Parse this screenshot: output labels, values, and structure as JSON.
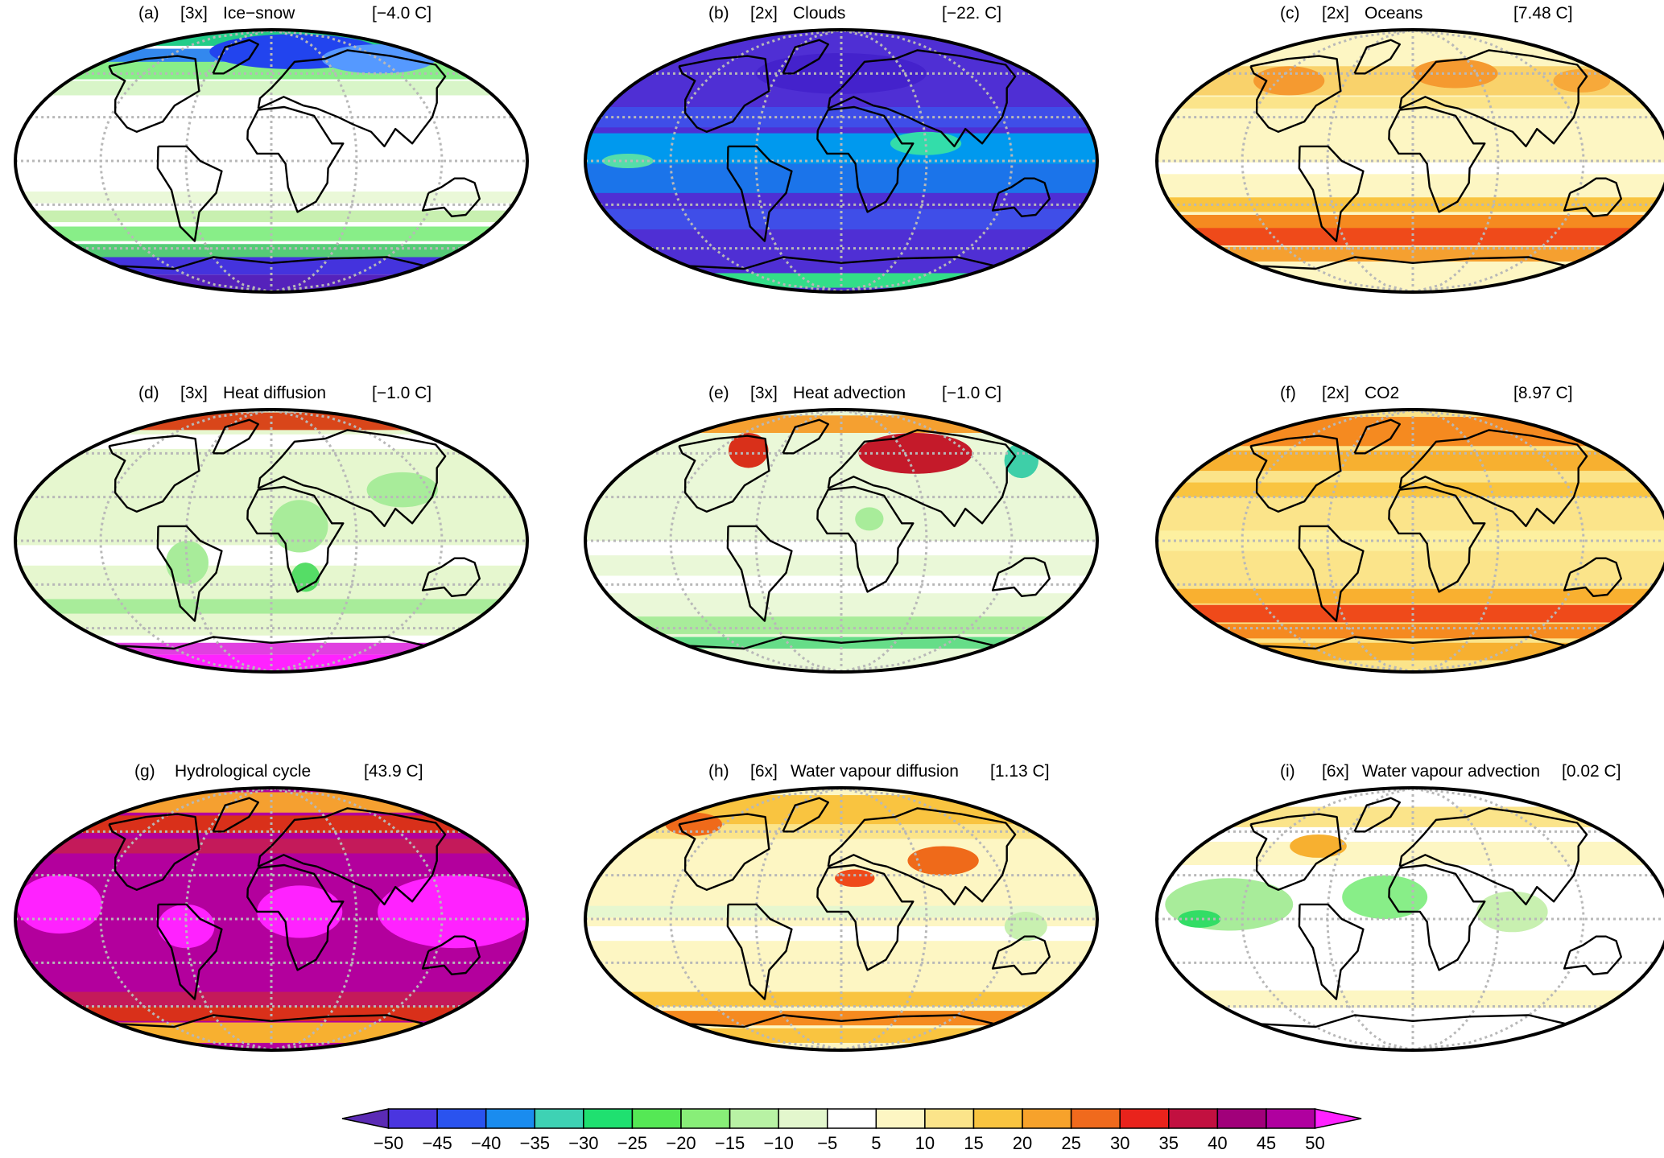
{
  "figure": {
    "panels": [
      {
        "letter": "(a)",
        "multiplier": "[3x]",
        "name": "Ice−snow",
        "mean": "[−4.0 C]",
        "base": "#ffffff",
        "bands": [
          {
            "lat": 85,
            "h": 12,
            "color": "#22cc88"
          },
          {
            "lat": 72,
            "h": 10,
            "color": "#3388ee"
          },
          {
            "lat": 62,
            "h": 12,
            "color": "#88ee88"
          },
          {
            "lat": 50,
            "h": 10,
            "color": "#d8f5c8"
          },
          {
            "lat": -25,
            "h": 8,
            "color": "#eaf8d8"
          },
          {
            "lat": -38,
            "h": 8,
            "color": "#c8f0b0"
          },
          {
            "lat": -50,
            "h": 10,
            "color": "#88ee88"
          },
          {
            "lat": -62,
            "h": 10,
            "color": "#55cc77"
          },
          {
            "lat": -72,
            "h": 12,
            "color": "#4433dd"
          },
          {
            "lat": -84,
            "h": 12,
            "color": "#5522bb"
          }
        ],
        "blobs": [
          {
            "lon": 30,
            "lat": 75,
            "rx": 60,
            "ry": 12,
            "color": "#2244ee"
          },
          {
            "lon": 120,
            "lat": 70,
            "rx": 40,
            "ry": 10,
            "color": "#5599ff"
          }
        ]
      },
      {
        "letter": "(b)",
        "multiplier": "[2x]",
        "name": "Clouds",
        "mean": "[−22. C]",
        "base": "#4f2fd4",
        "bands": [
          {
            "lat": 8,
            "h": 22,
            "color": "#0099ee"
          },
          {
            "lat": -12,
            "h": 20,
            "color": "#1b74ea"
          },
          {
            "lat": 30,
            "h": 14,
            "color": "#3f4ee8"
          },
          {
            "lat": -40,
            "h": 14,
            "color": "#3f4ee8"
          },
          {
            "lat": -82,
            "h": 10,
            "color": "#33dd88"
          }
        ],
        "blobs": [
          {
            "lon": -150,
            "lat": 0,
            "rx": 18,
            "ry": 5,
            "color": "#55ddaa"
          },
          {
            "lon": 60,
            "lat": 12,
            "rx": 25,
            "ry": 8,
            "color": "#33ddaa"
          },
          {
            "lon": 0,
            "lat": 60,
            "rx": 60,
            "ry": 14,
            "color": "#4422cc"
          }
        ]
      },
      {
        "letter": "(c)",
        "multiplier": "[2x]",
        "name": "Oceans",
        "mean": "[7.48 C]",
        "base": "#fdf6c3",
        "bands": [
          {
            "lat": 55,
            "h": 20,
            "color": "#f9d26b"
          },
          {
            "lat": 40,
            "h": 8,
            "color": "#fbe48a"
          },
          {
            "lat": -5,
            "h": 8,
            "color": "#ffffff"
          },
          {
            "lat": -30,
            "h": 10,
            "color": "#f9c440"
          },
          {
            "lat": -42,
            "h": 10,
            "color": "#f58a20"
          },
          {
            "lat": -52,
            "h": 12,
            "color": "#ef4a1a"
          },
          {
            "lat": -64,
            "h": 10,
            "color": "#f5a030"
          },
          {
            "lat": -76,
            "h": 10,
            "color": "#fdf6c3"
          }
        ],
        "blobs": [
          {
            "lon": -110,
            "lat": 55,
            "rx": 25,
            "ry": 10,
            "color": "#f59a30"
          },
          {
            "lon": 40,
            "lat": 60,
            "rx": 30,
            "ry": 10,
            "color": "#f59a30"
          },
          {
            "lon": 150,
            "lat": 55,
            "rx": 20,
            "ry": 8,
            "color": "#f7a93a"
          }
        ]
      },
      {
        "letter": "(d)",
        "multiplier": "[3x]",
        "name": "Heat diffusion",
        "mean": "[−1.0 C]",
        "base": "#e6f7cf",
        "bands": [
          {
            "lat": 82,
            "h": 12,
            "color": "#d9461a"
          },
          {
            "lat": 68,
            "h": 10,
            "color": "#ffffff"
          },
          {
            "lat": -10,
            "h": 14,
            "color": "#ffffff"
          },
          {
            "lat": -45,
            "h": 10,
            "color": "#a8ec9a"
          },
          {
            "lat": -68,
            "h": 6,
            "color": "#ffffff"
          },
          {
            "lat": -74,
            "h": 8,
            "color": "#e040e0"
          },
          {
            "lat": -84,
            "h": 12,
            "color": "#ff22ff"
          }
        ],
        "blobs": [
          {
            "lon": 20,
            "lat": 10,
            "rx": 20,
            "ry": 18,
            "color": "#a8ec9a"
          },
          {
            "lon": 100,
            "lat": 35,
            "rx": 25,
            "ry": 12,
            "color": "#a8ec9a"
          },
          {
            "lon": -60,
            "lat": -15,
            "rx": 15,
            "ry": 15,
            "color": "#a8ec9a"
          },
          {
            "lon": 25,
            "lat": -25,
            "rx": 10,
            "ry": 10,
            "color": "#55dd66"
          }
        ]
      },
      {
        "letter": "(e)",
        "multiplier": "[3x]",
        "name": "Heat advection",
        "mean": "[−1.0 C]",
        "base": "#eaf8d8",
        "bands": [
          {
            "lat": 80,
            "h": 12,
            "color": "#f5a030"
          },
          {
            "lat": -5,
            "h": 10,
            "color": "#ffffff"
          },
          {
            "lat": -30,
            "h": 12,
            "color": "#ffffff"
          },
          {
            "lat": -58,
            "h": 12,
            "color": "#a8ec9a"
          },
          {
            "lat": -70,
            "h": 8,
            "color": "#66dd88"
          }
        ],
        "blobs": [
          {
            "lon": 70,
            "lat": 60,
            "rx": 40,
            "ry": 14,
            "color": "#c41a2a"
          },
          {
            "lon": -90,
            "lat": 62,
            "rx": 14,
            "ry": 12,
            "color": "#d9301a"
          },
          {
            "lon": 160,
            "lat": 55,
            "rx": 12,
            "ry": 12,
            "color": "#3ecfa8"
          },
          {
            "lon": 20,
            "lat": 15,
            "rx": 10,
            "ry": 8,
            "color": "#a8ec9a"
          }
        ]
      },
      {
        "letter": "(f)",
        "multiplier": "[2x]",
        "name": "CO2",
        "mean": "[8.97 C]",
        "base": "#fbe48a",
        "bands": [
          {
            "lat": 75,
            "h": 20,
            "color": "#f58a20"
          },
          {
            "lat": 55,
            "h": 14,
            "color": "#f7b030"
          },
          {
            "lat": 35,
            "h": 10,
            "color": "#f9c440"
          },
          {
            "lat": 0,
            "h": 14,
            "color": "#fdf0a0"
          },
          {
            "lat": -38,
            "h": 10,
            "color": "#f9b030"
          },
          {
            "lat": -50,
            "h": 12,
            "color": "#ef4a1a"
          },
          {
            "lat": -62,
            "h": 10,
            "color": "#f58a20"
          },
          {
            "lat": -76,
            "h": 12,
            "color": "#f7b030"
          }
        ],
        "blobs": []
      },
      {
        "letter": "(g)",
        "multiplier": "",
        "name": "Hydrological cycle",
        "mean": "[43.9 C]",
        "base": "#b3009d",
        "bands": [
          {
            "lat": 80,
            "h": 14,
            "color": "#f5a030"
          },
          {
            "lat": 65,
            "h": 12,
            "color": "#d9301a"
          },
          {
            "lat": 50,
            "h": 10,
            "color": "#c41a5a"
          },
          {
            "lat": -55,
            "h": 10,
            "color": "#c41a5a"
          },
          {
            "lat": -65,
            "h": 10,
            "color": "#d9301a"
          },
          {
            "lat": -78,
            "h": 14,
            "color": "#f7b030"
          }
        ],
        "blobs": [
          {
            "lon": -150,
            "lat": 10,
            "rx": 30,
            "ry": 20,
            "color": "#ff22ff"
          },
          {
            "lon": 130,
            "lat": 5,
            "rx": 55,
            "ry": 25,
            "color": "#ff22ff"
          },
          {
            "lon": 20,
            "lat": 5,
            "rx": 30,
            "ry": 18,
            "color": "#ff22ff"
          },
          {
            "lon": -60,
            "lat": -5,
            "rx": 20,
            "ry": 15,
            "color": "#ff22ff"
          }
        ]
      },
      {
        "letter": "(h)",
        "multiplier": "[6x]",
        "name": "Water vapour diffusion",
        "mean": "[1.13 C]",
        "base": "#fdf6c3",
        "bands": [
          {
            "lat": 75,
            "h": 20,
            "color": "#f9c440"
          },
          {
            "lat": 60,
            "h": 10,
            "color": "#fbe48a"
          },
          {
            "lat": 5,
            "h": 8,
            "color": "#e6f7cf"
          },
          {
            "lat": -10,
            "h": 10,
            "color": "#ffffff"
          },
          {
            "lat": -55,
            "h": 10,
            "color": "#f9c440"
          },
          {
            "lat": -68,
            "h": 10,
            "color": "#f58a20"
          },
          {
            "lat": -80,
            "h": 10,
            "color": "#f9c440"
          }
        ],
        "blobs": [
          {
            "lon": 80,
            "lat": 40,
            "rx": 25,
            "ry": 10,
            "color": "#ef6a1a"
          },
          {
            "lon": 10,
            "lat": 28,
            "rx": 14,
            "ry": 6,
            "color": "#ef4a1a"
          },
          {
            "lon": -150,
            "lat": 65,
            "rx": 20,
            "ry": 8,
            "color": "#ef6a1a"
          },
          {
            "lon": 130,
            "lat": -5,
            "rx": 15,
            "ry": 10,
            "color": "#c8f0b0"
          }
        ]
      },
      {
        "letter": "(i)",
        "multiplier": "[6x]",
        "name": "Water vapour advection",
        "mean": "[0.02 C]",
        "base": "#ffffff",
        "bands": [
          {
            "lat": 70,
            "h": 14,
            "color": "#fbe48a"
          },
          {
            "lat": 45,
            "h": 16,
            "color": "#fdf6c3"
          },
          {
            "lat": -55,
            "h": 12,
            "color": "#fdf6c3"
          },
          {
            "lat": -75,
            "h": 12,
            "color": "#ffffff"
          }
        ],
        "blobs": [
          {
            "lon": -130,
            "lat": 10,
            "rx": 45,
            "ry": 18,
            "color": "#a8ec9a"
          },
          {
            "lon": -20,
            "lat": 15,
            "rx": 30,
            "ry": 15,
            "color": "#88ee88"
          },
          {
            "lon": -150,
            "lat": 0,
            "rx": 15,
            "ry": 6,
            "color": "#33dd66"
          },
          {
            "lon": 70,
            "lat": 5,
            "rx": 25,
            "ry": 14,
            "color": "#c8f0b0"
          },
          {
            "lon": -80,
            "lat": 50,
            "rx": 20,
            "ry": 8,
            "color": "#f7b030"
          }
        ]
      }
    ]
  },
  "colorbar": {
    "ticks": [
      "−50",
      "−45",
      "−40",
      "−35",
      "−30",
      "−25",
      "−20",
      "−15",
      "−10",
      "−5",
      "5",
      "10",
      "15",
      "20",
      "25",
      "30",
      "35",
      "40",
      "45",
      "50"
    ],
    "colors": [
      "#5b2bb5",
      "#4a35e0",
      "#2a53ef",
      "#1a8cef",
      "#3ed2b4",
      "#1fe070",
      "#55e855",
      "#88ee78",
      "#b8f2a4",
      "#e3f7cd",
      "#ffffff",
      "#fdf6c3",
      "#fbe48a",
      "#f9c440",
      "#f7a22b",
      "#f06a1d",
      "#e9231c",
      "#c21040",
      "#a1007a",
      "#b0009f",
      "#ff22ff"
    ],
    "min_color": "#5b2bb5",
    "max_color": "#ff22ff"
  }
}
